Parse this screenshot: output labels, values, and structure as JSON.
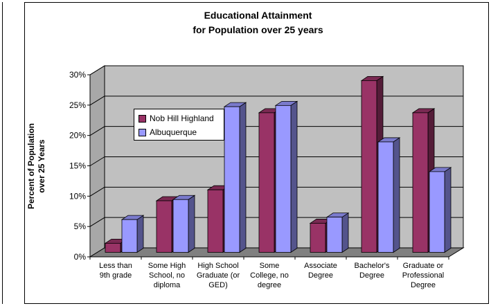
{
  "chart_data": {
    "type": "bar",
    "title": [
      "Educational Attainment",
      "for Population over 25 years"
    ],
    "ylabel": [
      "Percent of Population",
      "over 25 Years"
    ],
    "xlabel": "",
    "ylim": [
      0,
      30
    ],
    "yticks": [
      "0%",
      "5%",
      "10%",
      "15%",
      "20%",
      "25%",
      "30%"
    ],
    "ytick_values": [
      0,
      5,
      10,
      15,
      20,
      25,
      30
    ],
    "grid": true,
    "legend_position": "upper-left-inside",
    "categories": [
      [
        "Less than",
        "9th grade"
      ],
      [
        "Some High",
        "School, no",
        "diploma"
      ],
      [
        "High School",
        "Graduate (or",
        "GED)"
      ],
      [
        "Some",
        "College, no",
        "degree"
      ],
      [
        "Associate",
        "Degree"
      ],
      [
        "Bachelor's",
        "Degree"
      ],
      [
        "Graduate or",
        "Professional",
        "Degree"
      ]
    ],
    "series": [
      {
        "name": "Nob Hill Highland",
        "color": "#993366",
        "values": [
          1.5,
          8.5,
          10.3,
          23.0,
          4.8,
          28.3,
          23.0
        ]
      },
      {
        "name": "Albuquerque",
        "color": "#9999ff",
        "values": [
          5.4,
          8.7,
          24.0,
          24.2,
          5.8,
          18.2,
          13.3
        ]
      }
    ],
    "colors": {
      "wall": "#c0c0c0",
      "floor": "#808080"
    }
  }
}
